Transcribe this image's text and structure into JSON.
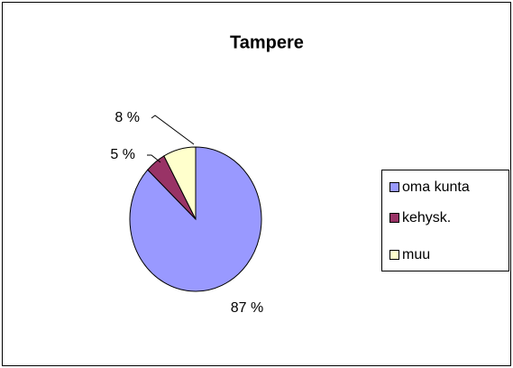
{
  "chart_data": {
    "type": "pie",
    "title": "Tampere",
    "categories": [
      "oma kunta",
      "kehysk.",
      "muu"
    ],
    "values": [
      87,
      5,
      8
    ],
    "value_labels": [
      "87 %",
      "5 %",
      "8 %"
    ],
    "colors": [
      "#9999ff",
      "#993366",
      "#ffffcc"
    ],
    "legend": "right"
  }
}
